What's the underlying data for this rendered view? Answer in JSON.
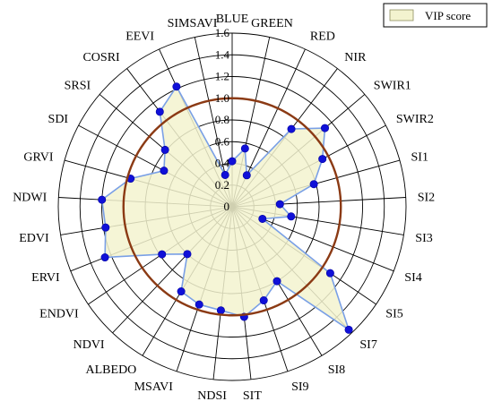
{
  "chart_data": {
    "type": "radar",
    "axes": [
      "BLUE",
      "GREEN",
      "RED",
      "NIR",
      "SWIR1",
      "SWIR2",
      "SI1",
      "SI2",
      "SI3",
      "SI4",
      "SI5",
      "SI7",
      "SI8",
      "SI9",
      "SIT",
      "NDSI",
      "MSAVI",
      "ALBEDO",
      "NDVI",
      "ENDVI",
      "ERVI",
      "EDVI",
      "NDWI",
      "GRVI",
      "SDI",
      "SRSI",
      "COSRI",
      "EEVI",
      "SIMSAVI"
    ],
    "series": [
      {
        "name": "VIP  score",
        "values": [
          0.42,
          0.55,
          0.32,
          0.9,
          1.12,
          0.94,
          0.78,
          0.44,
          0.55,
          0.3,
          1.09,
          1.56,
          0.8,
          0.91,
          1.02,
          0.96,
          0.95,
          0.91,
          0.6,
          0.78,
          1.26,
          1.18,
          1.2,
          0.97,
          0.71,
          0.81,
          1.1,
          1.22,
          0.3
        ],
        "fill": "#f3f3cf",
        "line": "#7aa0e6",
        "marker": "#1010d8"
      }
    ],
    "reference_circle": 1.0,
    "reference_color": "#8b3a14",
    "rlim": [
      0,
      1.6
    ],
    "ticks": [
      "0",
      "0.2",
      "0.4",
      "0.6",
      "0.8",
      "1.0",
      "1.2",
      "1.4",
      "1.6"
    ],
    "tick_values": [
      0,
      0.2,
      0.4,
      0.6,
      0.8,
      1.0,
      1.2,
      1.4,
      1.6
    ],
    "grid": true,
    "legend": "top-right"
  }
}
